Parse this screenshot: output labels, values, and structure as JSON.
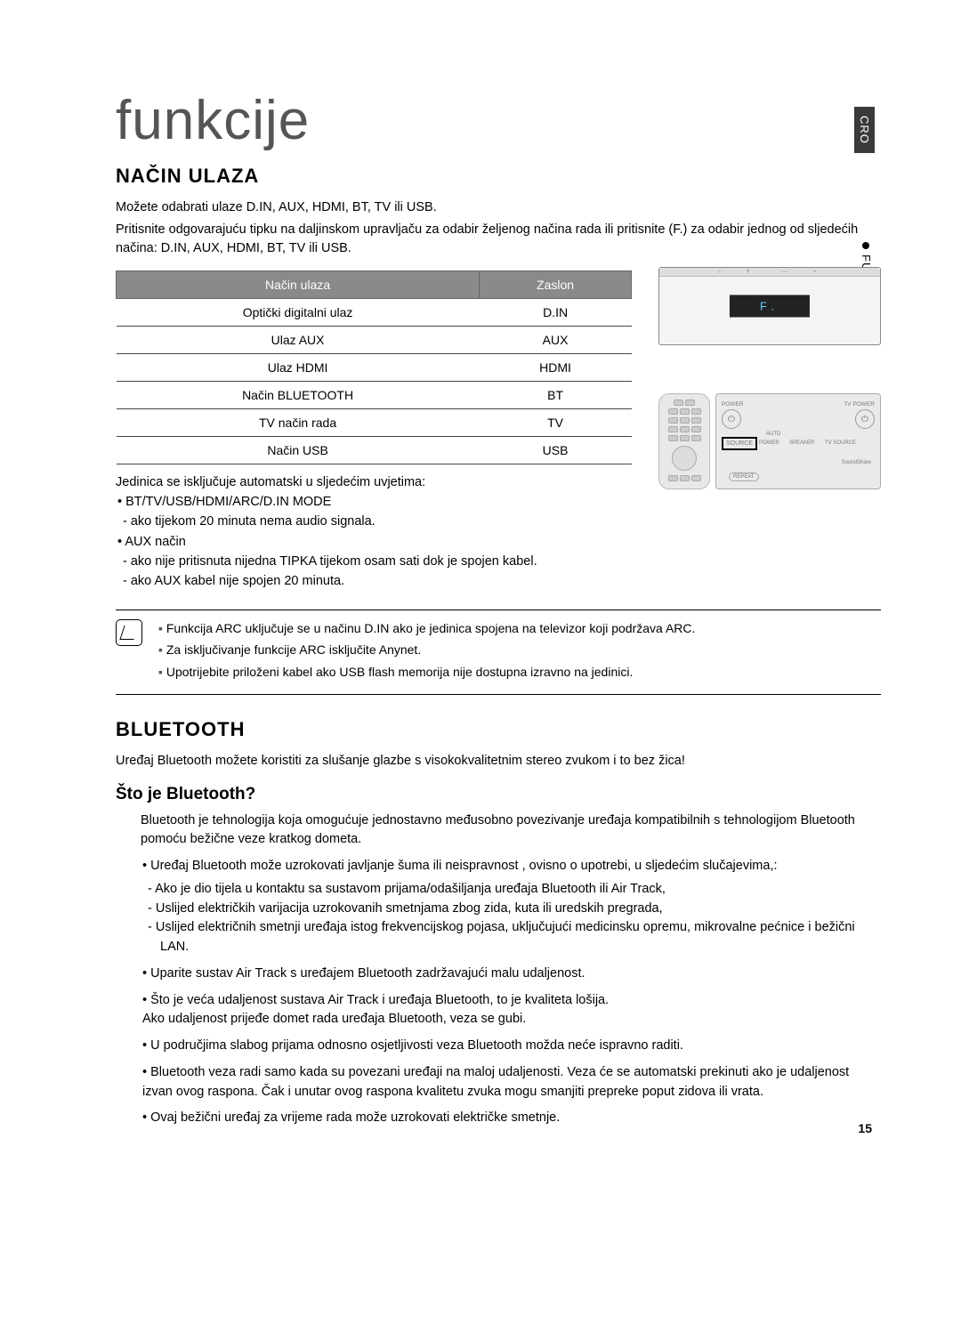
{
  "locale_tab": "CRO",
  "side_section": "FUNKCIJE",
  "page_title": "funkcije",
  "page_number": "15",
  "section1": {
    "heading": "NAČIN ULAZA",
    "intro1": "Možete odabrati ulaze D.IN, AUX, HDMI, BT, TV ili USB.",
    "intro2": "Pritisnite odgovarajuću tipku na daljinskom upravljaču za odabir željenog načina rada ili pritisnite (F.) za odabir jednog od sljedećih načina: D.IN, AUX, HDMI, BT, TV ili USB.",
    "table": {
      "headers": [
        "Način ulaza",
        "Zaslon"
      ],
      "rows": [
        [
          "Optički digitalni ulaz",
          "D.IN"
        ],
        [
          "Ulaz AUX",
          "AUX"
        ],
        [
          "Ulaz HDMI",
          "HDMI"
        ],
        [
          "Način BLUETOOTH",
          "BT"
        ],
        [
          "TV način rada",
          "TV"
        ],
        [
          "Način USB",
          "USB"
        ]
      ]
    },
    "device_display": "F.",
    "panel": {
      "power": "POWER",
      "tv_power": "TV POWER",
      "auto": "AUTO",
      "source": "SOURCE",
      "speaker": "SPEAKER",
      "tv_source": "TV SOURCE",
      "soundshare": "SoundShare",
      "repeat": "REPEAT"
    },
    "autooff_intro": "Jedinica se isključuje automatski u sljedećim uvjetima:",
    "autooff_items": [
      {
        "label": "BT/TV/USB/HDMI/ARC/D.IN MODE",
        "subs": [
          "ako tijekom 20 minuta nema audio signala."
        ]
      },
      {
        "label": "AUX način",
        "subs": [
          "ako nije pritisnuta nijedna TIPKA tijekom osam sati dok je spojen kabel.",
          "ako AUX kabel nije spojen 20 minuta."
        ]
      }
    ],
    "notes": [
      "Funkcija ARC uključuje se u načinu D.IN ako je jedinica spojena na televizor koji podržava ARC.",
      "Za isključivanje funkcije ARC isključite Anynet.",
      "Upotrijebite priloženi kabel ako USB flash memorija nije dostupna izravno na jedinici."
    ]
  },
  "section2": {
    "heading": "BLUETOOTH",
    "intro": "Uređaj Bluetooth možete koristiti za slušanje glazbe s visokokvalitetnim stereo zvukom i to bez žica!",
    "sub_heading": "Što je Bluetooth?",
    "sub_intro": "Bluetooth je tehnologija koja omogućuje jednostavno međusobno povezivanje uređaja kompatibilnih s tehnologijom Bluetooth pomoću bežične veze kratkog dometa.",
    "bullets": [
      {
        "text": "Uređaj Bluetooth može uzrokovati javljanje šuma ili neispravnost , ovisno o upotrebi, u sljedećim slučajevima,:",
        "subs": [
          "Ako je dio tijela u kontaktu sa sustavom prijama/odašiljanja uređaja Bluetooth ili Air Track,",
          "Uslijed električkih varijacija uzrokovanih smetnjama zbog zida, kuta ili uredskih pregrada,",
          "Uslijed električnih smetnji uređaja istog frekvencijskog pojasa, uključujući medicinsku opremu, mikrovalne pećnice i bežični LAN."
        ]
      },
      {
        "text": "Uparite sustav Air Track s uređajem Bluetooth zadržavajući malu udaljenost."
      },
      {
        "text": "Što je veća udaljenost sustava Air Track i uređaja Bluetooth, to je kvaliteta lošija.\nAko udaljenost prijeđe domet rada uređaja Bluetooth, veza se gubi."
      },
      {
        "text": "U područjima slabog prijama odnosno osjetljivosti veza Bluetooth možda neće ispravno raditi."
      },
      {
        "text": "Bluetooth veza radi samo kada su povezani uređaji na maloj udaljenosti. Veza će se automatski prekinuti ako je udaljenost izvan ovog raspona. Čak i unutar ovog raspona kvalitetu zvuka mogu smanjiti prepreke poput zidova ili vrata."
      },
      {
        "text": "Ovaj bežični uređaj za vrijeme rada može uzrokovati električke smetnje."
      }
    ]
  }
}
